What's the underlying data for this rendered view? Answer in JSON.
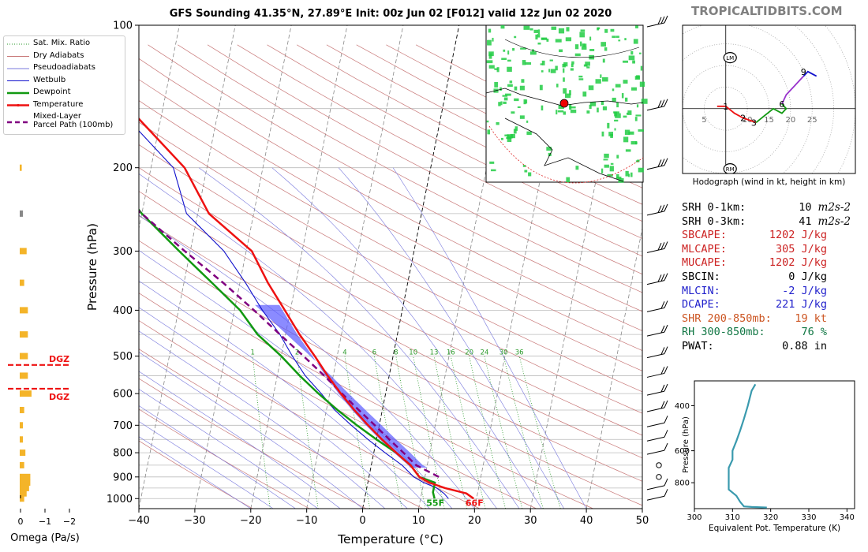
{
  "title": "GFS Sounding 41.35°N, 27.89°E Init: 00z Jun 02 [F012] valid 12z Jun 02 2020",
  "site_label": "TROPICALTIDBITS.COM",
  "colors": {
    "temperature": "#ee1111",
    "dewpoint": "#119911",
    "wetbulb": "#1111cc",
    "parcel": "#800080",
    "dry_adiabat": "#c87878",
    "pseudoadiabat": "#7878dd",
    "mixing_ratio": "#2a9a2a",
    "isobar": "#bbbbbb",
    "isotherm": "#888888",
    "dgz": "#ee1111",
    "omega": "#f4b429",
    "cape_fill": "#5a5aff",
    "theta_e": "#3a9aae"
  },
  "legend": [
    {
      "key": "sat-mix-ratio",
      "label": "Sat. Mix. Ratio",
      "style": "dotted",
      "color": "#2a9a2a"
    },
    {
      "key": "dry-adiabats",
      "label": "Dry Adiabats",
      "style": "solid-thin",
      "color": "#c87878"
    },
    {
      "key": "pseudoadiabats",
      "label": "Pseudoadiabats",
      "style": "solid-thin",
      "color": "#7878dd"
    },
    {
      "key": "wetbulb",
      "label": "Wetbulb",
      "style": "solid-thin",
      "color": "#1111cc"
    },
    {
      "key": "dewpoint",
      "label": "Dewpoint",
      "style": "solid-thick",
      "color": "#119911"
    },
    {
      "key": "temperature",
      "label": "Temperature",
      "style": "solid-thick",
      "color": "#ee1111"
    },
    {
      "key": "parcel",
      "label": "Mixed-Layer\nParcel Path (100mb)",
      "style": "dashed-thick",
      "color": "#800080"
    }
  ],
  "chart_data": [
    {
      "id": "skewt",
      "type": "line",
      "title": "GFS Sounding 41.35°N, 27.89°E Init: 00z Jun 02 [F012] valid 12z Jun 02 2020",
      "xlabel": "Temperature (°C)",
      "ylabel": "Pressure (hPa)",
      "xlim": [
        -40,
        50
      ],
      "ylim": [
        1050,
        100
      ],
      "y_scale": "log",
      "x_ticks": [
        -40,
        -30,
        -20,
        -10,
        0,
        10,
        20,
        30,
        40,
        50
      ],
      "y_ticks": [
        100,
        200,
        300,
        400,
        500,
        600,
        700,
        800,
        900,
        1000
      ],
      "mixing_ratio_labels": [
        "1",
        "2",
        "4",
        "6",
        "8",
        "10",
        "13",
        "16",
        "20",
        "24",
        "30",
        "36"
      ],
      "surface_labels": {
        "dewpoint": "55F",
        "temperature": "66F"
      },
      "series": [
        {
          "name": "Temperature",
          "points": [
            [
              19.5,
              1000
            ],
            [
              18,
              975
            ],
            [
              14,
              950
            ],
            [
              11,
              925
            ],
            [
              9,
              900
            ],
            [
              7,
              850
            ],
            [
              4,
              800
            ],
            [
              1,
              750
            ],
            [
              -2,
              700
            ],
            [
              -5,
              650
            ],
            [
              -8,
              600
            ],
            [
              -11,
              550
            ],
            [
              -14,
              500
            ],
            [
              -17.5,
              450
            ],
            [
              -21,
              400
            ],
            [
              -25,
              350
            ],
            [
              -29,
              300
            ],
            [
              -38,
              250
            ],
            [
              -44,
              200
            ],
            [
              -56,
              150
            ],
            [
              -58,
              100
            ]
          ]
        },
        {
          "name": "Dewpoint",
          "points": [
            [
              12.5,
              1000
            ],
            [
              12,
              970
            ],
            [
              12,
              925
            ],
            [
              9,
              900
            ],
            [
              7,
              850
            ],
            [
              4,
              800
            ],
            [
              0,
              750
            ],
            [
              -4,
              700
            ],
            [
              -8,
              650
            ],
            [
              -12,
              600
            ],
            [
              -16,
              550
            ],
            [
              -20,
              500
            ],
            [
              -25,
              450
            ],
            [
              -29,
              400
            ],
            [
              -35,
              350
            ],
            [
              -42,
              300
            ],
            [
              -50,
              250
            ],
            [
              -58,
              200
            ],
            [
              -75,
              160
            ],
            [
              -85,
              120
            ],
            [
              -100,
              100
            ]
          ]
        },
        {
          "name": "Wetbulb",
          "points": [
            [
              15,
              1000
            ],
            [
              14,
              975
            ],
            [
              12.5,
              950
            ],
            [
              10,
              925
            ],
            [
              8,
              900
            ],
            [
              5.5,
              850
            ],
            [
              2,
              800
            ],
            [
              -1.5,
              750
            ],
            [
              -5,
              700
            ],
            [
              -8.5,
              650
            ],
            [
              -11.5,
              600
            ],
            [
              -15,
              550
            ],
            [
              -18,
              500
            ],
            [
              -21,
              450
            ],
            [
              -25,
              400
            ],
            [
              -29,
              350
            ],
            [
              -34,
              300
            ],
            [
              -42,
              250
            ],
            [
              -46,
              200
            ],
            [
              -58,
              150
            ],
            [
              -62,
              100
            ]
          ]
        },
        {
          "name": "Mixed-Layer Parcel Path (100mb)",
          "points": [
            [
              12.5,
              900
            ],
            [
              8,
              850
            ],
            [
              5.3,
              800
            ],
            [
              2.3,
              750
            ],
            [
              -0.8,
              700
            ],
            [
              -4.2,
              650
            ],
            [
              -7.8,
              600
            ],
            [
              -11.6,
              550
            ],
            [
              -16,
              500
            ],
            [
              -21,
              450
            ],
            [
              -26.5,
              400
            ],
            [
              -33,
              350
            ],
            [
              -41,
              300
            ],
            [
              -50,
              250
            ],
            [
              -61,
              200
            ],
            [
              -75,
              150
            ],
            [
              -96,
              100
            ]
          ]
        }
      ],
      "dgz_levels": [
        {
          "pressure": 522,
          "label": "DGZ"
        },
        {
          "pressure": 586,
          "label": "DGZ"
        }
      ]
    },
    {
      "id": "omega",
      "type": "bar",
      "xlabel": "Omega (Pa/s)",
      "x_ticks": [
        "0",
        "−1",
        "−2"
      ],
      "xlim": [
        0.2,
        -2.3
      ],
      "y_scale": "log",
      "bars": [
        {
          "pressure": 1000,
          "value": -0.15
        },
        {
          "pressure": 975,
          "value": -0.25
        },
        {
          "pressure": 950,
          "value": -0.35
        },
        {
          "pressure": 925,
          "value": -0.4
        },
        {
          "pressure": 900,
          "value": -0.4
        },
        {
          "pressure": 850,
          "value": -0.15
        },
        {
          "pressure": 800,
          "value": -0.2
        },
        {
          "pressure": 750,
          "value": -0.1
        },
        {
          "pressure": 700,
          "value": -0.1
        },
        {
          "pressure": 650,
          "value": -0.15
        },
        {
          "pressure": 600,
          "value": -0.45
        },
        {
          "pressure": 550,
          "value": -0.3
        },
        {
          "pressure": 500,
          "value": -0.3
        },
        {
          "pressure": 450,
          "value": -0.3
        },
        {
          "pressure": 400,
          "value": -0.3
        },
        {
          "pressure": 350,
          "value": -0.15
        },
        {
          "pressure": 300,
          "value": -0.25
        },
        {
          "pressure": 250,
          "value": -0.1,
          "color": "#888888"
        },
        {
          "pressure": 200,
          "value": -0.05
        }
      ]
    },
    {
      "id": "hodograph",
      "type": "line",
      "xlabel": "Hodograph (wind in kt, height in km)",
      "xlim": [
        -10,
        30
      ],
      "ylim": [
        -14,
        18
      ],
      "ring_labels": [
        "5",
        "10",
        "15",
        "20",
        "25"
      ],
      "markers": [
        {
          "label": "LM",
          "u": 1,
          "v": 11
        },
        {
          "label": "RM",
          "u": 1,
          "v": -13
        }
      ],
      "height_labels": [
        {
          "label": "1",
          "u": 0,
          "v": 0.5
        },
        {
          "label": "2",
          "u": 4,
          "v": -2
        },
        {
          "label": "3",
          "u": 6.5,
          "v": -3
        },
        {
          "label": "6",
          "u": 13,
          "v": 1
        },
        {
          "label": "9",
          "u": 18,
          "v": 8
        }
      ],
      "segments": [
        {
          "color": "#ee1111",
          "points": [
            [
              -2,
              0.5
            ],
            [
              0,
              0.5
            ],
            [
              2,
              -1
            ],
            [
              4,
              -2
            ],
            [
              7,
              -3
            ]
          ]
        },
        {
          "color": "#119911",
          "points": [
            [
              7,
              -3
            ],
            [
              9,
              -1.5
            ],
            [
              11,
              0
            ],
            [
              13,
              -1
            ],
            [
              14,
              0
            ],
            [
              13,
              1
            ]
          ]
        },
        {
          "color": "#9933cc",
          "points": [
            [
              13,
              1
            ],
            [
              14,
              3
            ],
            [
              16,
              5
            ],
            [
              18,
              7
            ]
          ]
        },
        {
          "color": "#1111cc",
          "points": [
            [
              18,
              7
            ],
            [
              19,
              8
            ],
            [
              21,
              7
            ]
          ]
        }
      ]
    },
    {
      "id": "theta-e",
      "type": "line",
      "xlabel": "Equivalent Pot. Temperature (K)",
      "ylabel": "Pressure (hPa)",
      "xlim": [
        300,
        342
      ],
      "ylim": [
        1010,
        320
      ],
      "x_ticks": [
        300,
        310,
        320,
        330,
        340
      ],
      "y_ticks": [
        400,
        600,
        800
      ],
      "series": [
        {
          "name": "theta-e",
          "points": [
            [
              319,
              1000
            ],
            [
              315,
              995
            ],
            [
              313,
              990
            ],
            [
              312,
              950
            ],
            [
              311,
              900
            ],
            [
              309,
              850
            ],
            [
              309,
              800
            ],
            [
              309,
              750
            ],
            [
              309,
              700
            ],
            [
              310,
              650
            ],
            [
              310,
              600
            ],
            [
              311,
              550
            ],
            [
              312,
              500
            ],
            [
              313,
              450
            ],
            [
              314,
              400
            ],
            [
              315,
              350
            ],
            [
              316,
              330
            ]
          ]
        }
      ]
    }
  ],
  "indices": [
    {
      "label": "SRH 0-1km:",
      "value": "10",
      "unit": "m2s-2",
      "color": "#000000"
    },
    {
      "label": "SRH 0-3km:",
      "value": "41",
      "unit": "m2s-2",
      "color": "#000000"
    },
    {
      "label": "SBCAPE:",
      "value": "1202 J/kg",
      "color": "#cc2222"
    },
    {
      "label": "MLCAPE:",
      "value": "305 J/kg",
      "color": "#cc2222"
    },
    {
      "label": "MUCAPE:",
      "value": "1202 J/kg",
      "color": "#cc2222"
    },
    {
      "label": "SBCIN:",
      "value": "0 J/kg",
      "color": "#000000"
    },
    {
      "label": "MLCIN:",
      "value": "-2 J/kg",
      "color": "#2222cc"
    },
    {
      "label": "DCAPE:",
      "value": "221 J/kg",
      "color": "#2222cc"
    },
    {
      "label": "SHR 200-850mb:",
      "value": "19 kt",
      "color": "#cc5522"
    },
    {
      "label": "RH 300-850mb:",
      "value": "76 %",
      "color": "#117744"
    },
    {
      "label": "PWAT:",
      "value": "0.88 in",
      "color": "#000000"
    }
  ]
}
